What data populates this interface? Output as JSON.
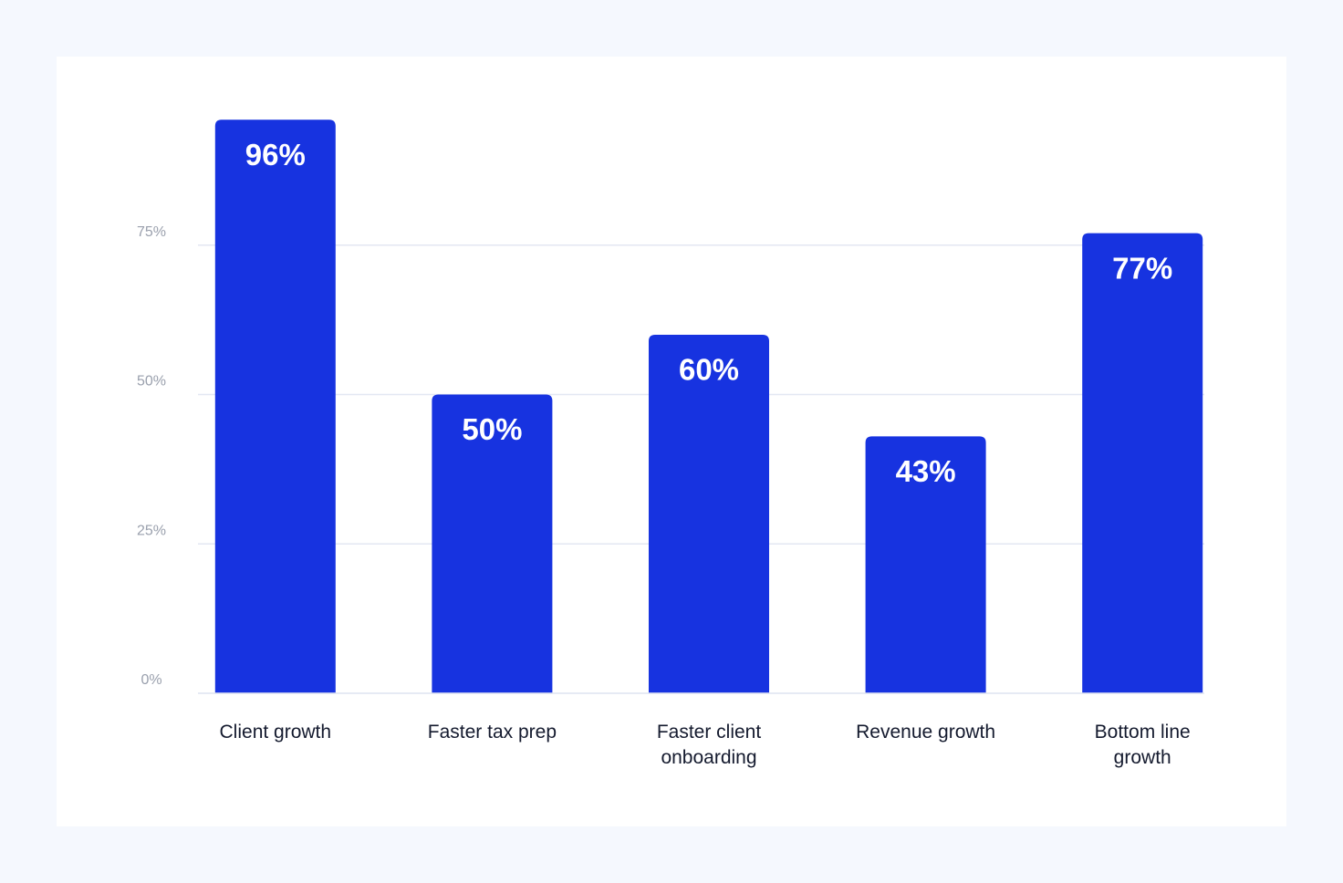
{
  "chart_data": {
    "type": "bar",
    "categories": [
      "Client growth",
      "Faster tax prep",
      "Faster client onboarding",
      "Revenue growth",
      "Bottom line growth"
    ],
    "values": [
      96,
      50,
      60,
      43,
      77
    ],
    "value_labels": [
      "96%",
      "50%",
      "60%",
      "43%",
      "77%"
    ],
    "color": "#1733e0",
    "ylim": [
      0,
      100
    ],
    "yticks": [
      {
        "value": 0,
        "label": "0%"
      },
      {
        "value": 25,
        "label": "25%"
      },
      {
        "value": 50,
        "label": "50%"
      },
      {
        "value": 75,
        "label": "75%"
      }
    ],
    "grid": true
  }
}
